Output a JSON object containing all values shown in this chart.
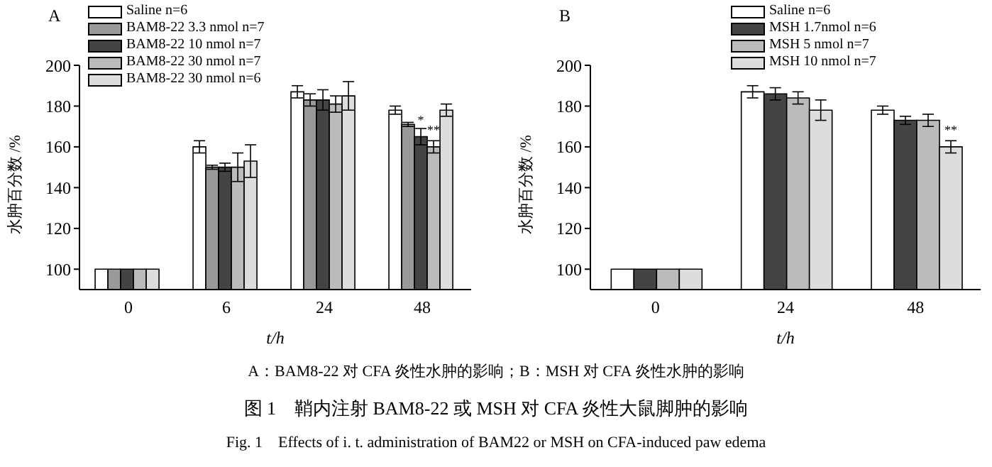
{
  "chart_data": [
    {
      "type": "bar",
      "title": "A",
      "xlabel": "t/h",
      "ylabel": "水肿百分数 /%",
      "categories": [
        "0",
        "6",
        "24",
        "48"
      ],
      "ylim": [
        90,
        200
      ],
      "yticks": [
        100,
        120,
        140,
        160,
        180,
        200
      ],
      "legend": "top left",
      "series": [
        {
          "name": "Saline n=6",
          "color": "#ffffff",
          "values": [
            100,
            160,
            187,
            178
          ],
          "errors": [
            null,
            3,
            3,
            2
          ]
        },
        {
          "name": "BAM8-22 3.3 nmol n=7",
          "color": "#999999",
          "values": [
            100,
            150,
            183,
            171
          ],
          "errors": [
            null,
            1,
            3,
            1
          ]
        },
        {
          "name": "BAM8-22 10 nmol n=7",
          "color": "#444444",
          "values": [
            100,
            150,
            183,
            165
          ],
          "errors": [
            null,
            2,
            5,
            4
          ],
          "value_labels": [
            null,
            null,
            null,
            "*"
          ]
        },
        {
          "name": "BAM8-22 30 nmol n=7",
          "color": "#bbbbbb",
          "values": [
            100,
            150,
            181,
            160
          ],
          "errors": [
            null,
            7,
            4,
            3
          ],
          "value_labels": [
            null,
            null,
            null,
            "**"
          ]
        },
        {
          "name": "BAM8-22 30 nmol n=6",
          "color": "#dddddd",
          "values": [
            100,
            153,
            185,
            178
          ],
          "errors": [
            null,
            8,
            7,
            3
          ]
        }
      ],
      "annotations": [
        "A：BAM8-22 对 CFA 炎性水肿的影响；B：MSH 对 CFA 炎性水肿的影响",
        "图 1　鞘内注射 BAM8-22 或 MSH 对 CFA 炎性大鼠脚肿的影响",
        "Fig. 1　Effects of i. t. administration of BAM22 or MSH on CFA-induced paw edema"
      ]
    },
    {
      "type": "bar",
      "title": "B",
      "xlabel": "t/h",
      "ylabel": "水肿百分数 /%",
      "categories": [
        "0",
        "24",
        "48"
      ],
      "ylim": [
        90,
        200
      ],
      "yticks": [
        100,
        120,
        140,
        160,
        180,
        200
      ],
      "legend": "top right",
      "series": [
        {
          "name": "Saline n=6",
          "color": "#ffffff",
          "values": [
            100,
            187,
            178
          ],
          "errors": [
            null,
            3,
            2
          ]
        },
        {
          "name": "MSH 1.7nmol n=6",
          "color": "#444444",
          "values": [
            100,
            186,
            173
          ],
          "errors": [
            null,
            3,
            2
          ]
        },
        {
          "name": "MSH 5 nmol n=7",
          "color": "#bbbbbb",
          "values": [
            100,
            184,
            173
          ],
          "errors": [
            null,
            3,
            3
          ]
        },
        {
          "name": "MSH 10 nmol n=7",
          "color": "#dddddd",
          "values": [
            100,
            178,
            160
          ],
          "errors": [
            null,
            5,
            3
          ],
          "value_labels": [
            null,
            null,
            "**"
          ]
        }
      ]
    }
  ]
}
